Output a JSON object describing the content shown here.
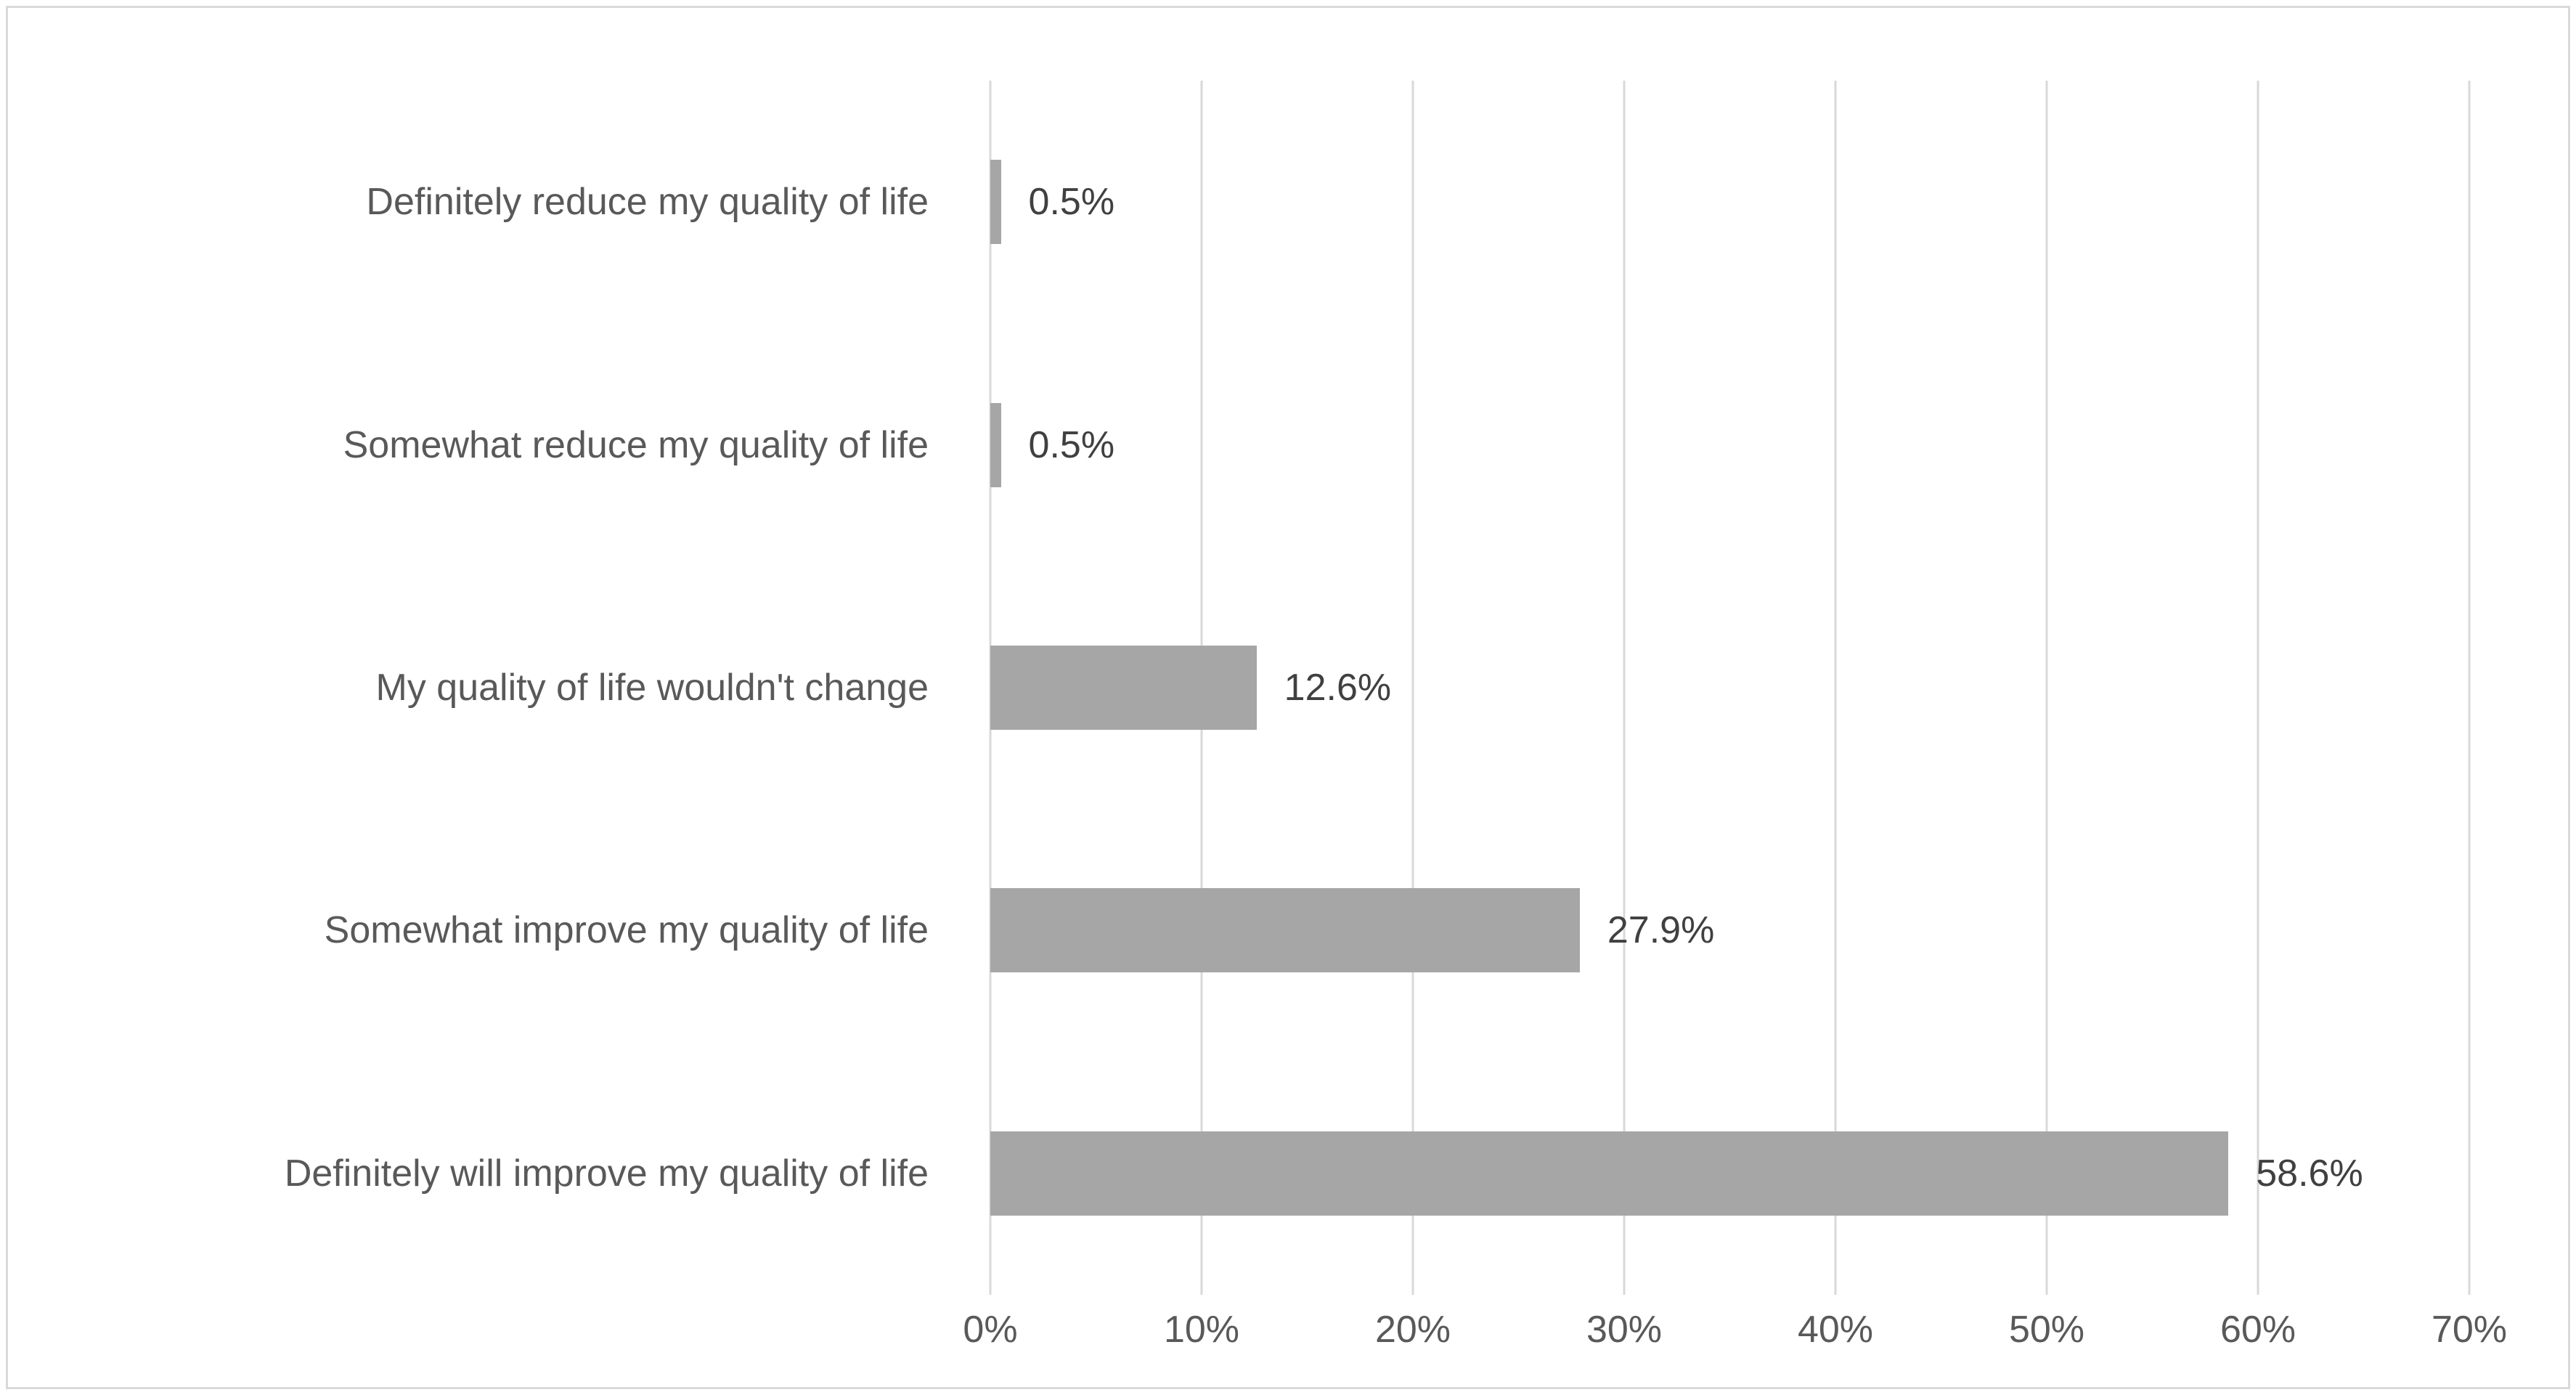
{
  "chart_data": {
    "type": "bar",
    "orientation": "horizontal",
    "title": "",
    "xlabel": "",
    "ylabel": "",
    "categories": [
      "Definitely reduce my quality of life",
      "Somewhat reduce my quality of life",
      "My quality of life wouldn't change",
      "Somewhat improve my quality of life",
      "Definitely will improve my quality of life"
    ],
    "values": [
      0.5,
      0.5,
      12.6,
      27.9,
      58.6
    ],
    "data_labels": [
      "0.5%",
      "0.5%",
      "12.6%",
      "27.9%",
      "58.6%"
    ],
    "x_ticks": [
      {
        "value": 0,
        "label": "0%"
      },
      {
        "value": 10,
        "label": "10%"
      },
      {
        "value": 20,
        "label": "20%"
      },
      {
        "value": 30,
        "label": "30%"
      },
      {
        "value": 40,
        "label": "40%"
      },
      {
        "value": 50,
        "label": "50%"
      },
      {
        "value": 60,
        "label": "60%"
      },
      {
        "value": 70,
        "label": "70%"
      }
    ],
    "xlim": [
      0,
      70
    ],
    "grid": "vertical-gridlines-on",
    "legend": "none",
    "colors": {
      "bar_fill": "#a6a6a6",
      "gridline": "#d9d9d9",
      "frame_border": "#d9d9d9",
      "category_label_text": "#595959",
      "tick_label_text": "#595959",
      "data_label_text": "#404040",
      "background": "#ffffff"
    }
  }
}
